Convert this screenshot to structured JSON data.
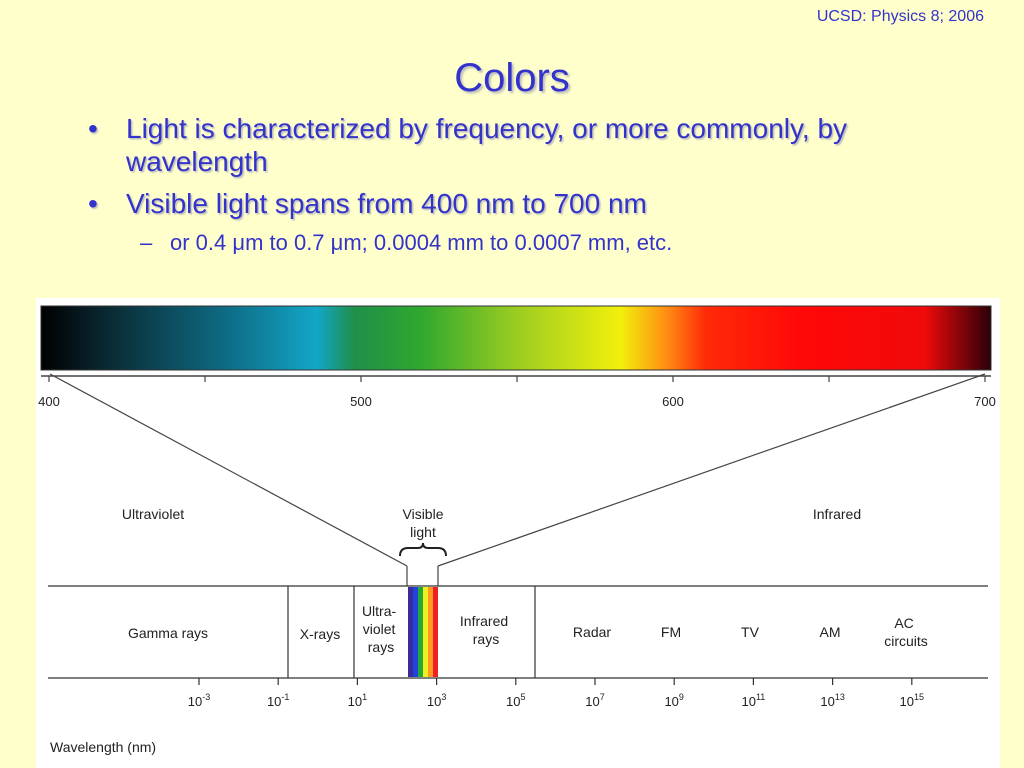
{
  "header": {
    "course": "UCSD: Physics 8; 2006"
  },
  "title": "Colors",
  "bullets": [
    {
      "text": "Light is characterized by frequency, or more commonly, by wavelength"
    },
    {
      "text": "Visible light spans from 400 nm to 700 nm"
    }
  ],
  "subbullet": {
    "prefix": "or 0.4 ",
    "mu1": "μ",
    "mid": "m to 0.7 ",
    "mu2": "μ",
    "suffix": "m; 0.0004 mm to 0.0007 mm, etc."
  },
  "figure": {
    "visible_axis_ticks": [
      "400",
      "500",
      "600",
      "700"
    ],
    "region_labels": {
      "ultraviolet": "Ultraviolet",
      "visible_line1": "Visible",
      "visible_line2": "light",
      "infrared": "Infrared"
    },
    "bands": [
      {
        "id": "gamma",
        "lines": [
          "Gamma rays"
        ]
      },
      {
        "id": "xrays",
        "lines": [
          "X-rays"
        ]
      },
      {
        "id": "uv",
        "lines": [
          "Ultra-",
          "violet",
          "rays"
        ]
      },
      {
        "id": "ir",
        "lines": [
          "Infrared",
          "rays"
        ]
      },
      {
        "id": "radar",
        "lines": [
          "Radar"
        ]
      },
      {
        "id": "fm",
        "lines": [
          "FM"
        ]
      },
      {
        "id": "tv",
        "lines": [
          "TV"
        ]
      },
      {
        "id": "am",
        "lines": [
          "AM"
        ]
      },
      {
        "id": "ac",
        "lines": [
          "AC",
          "circuits"
        ]
      }
    ],
    "wavelength_ticks": [
      {
        "base": "10",
        "exp": "-3"
      },
      {
        "base": "10",
        "exp": "-1"
      },
      {
        "base": "10",
        "exp": "1"
      },
      {
        "base": "10",
        "exp": "3"
      },
      {
        "base": "10",
        "exp": "5"
      },
      {
        "base": "10",
        "exp": "7"
      },
      {
        "base": "10",
        "exp": "9"
      },
      {
        "base": "10",
        "exp": "11"
      },
      {
        "base": "10",
        "exp": "13"
      },
      {
        "base": "10",
        "exp": "15"
      }
    ],
    "axis_label": "Wavelength (nm)"
  },
  "colors": {
    "text_accent": "#3333cc",
    "background": "#ffffcc",
    "spectrum": [
      "#000000",
      "#0a2a33",
      "#0e6e88",
      "#12a6c8",
      "#1f8f4a",
      "#2fa82e",
      "#9bcc22",
      "#f2f00c",
      "#ff8a12",
      "#ff2a08",
      "#ff0808",
      "#f00a0a",
      "#2a0008"
    ]
  }
}
